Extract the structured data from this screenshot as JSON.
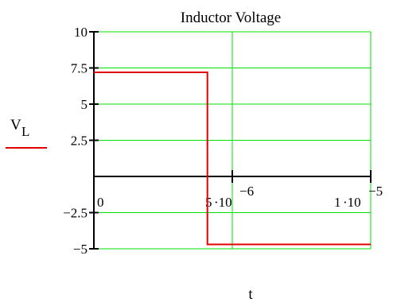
{
  "chart_data": {
    "type": "line",
    "title": "Inductor Voltage",
    "xlabel": "t",
    "ylabel": "V",
    "ylabel_sub": "L",
    "xlim": [
      0,
      1e-05
    ],
    "ylim": [
      -5,
      10
    ],
    "grid": true,
    "colors": {
      "grid": "#00e000",
      "series": "#e00000",
      "axis": "#000000"
    },
    "yticks": [
      {
        "value": 10,
        "label": "10"
      },
      {
        "value": 7.5,
        "label": "7.5"
      },
      {
        "value": 5,
        "label": "5"
      },
      {
        "value": 2.5,
        "label": "2.5"
      },
      {
        "value": -2.5,
        "label": "−2.5"
      },
      {
        "value": -5,
        "label": "−5"
      }
    ],
    "xticks": [
      {
        "value": 0,
        "label": "0"
      },
      {
        "value": 5e-06,
        "mantissa": "5",
        "base": "·10",
        "exponent": "−6"
      },
      {
        "value": 1e-05,
        "mantissa": "1",
        "base": "·10",
        "exponent": "−5"
      }
    ],
    "series": [
      {
        "x": [
          0,
          4.1e-06,
          4.1e-06,
          1e-05
        ],
        "y": [
          7.2,
          7.2,
          -4.7,
          -4.7
        ]
      }
    ]
  }
}
